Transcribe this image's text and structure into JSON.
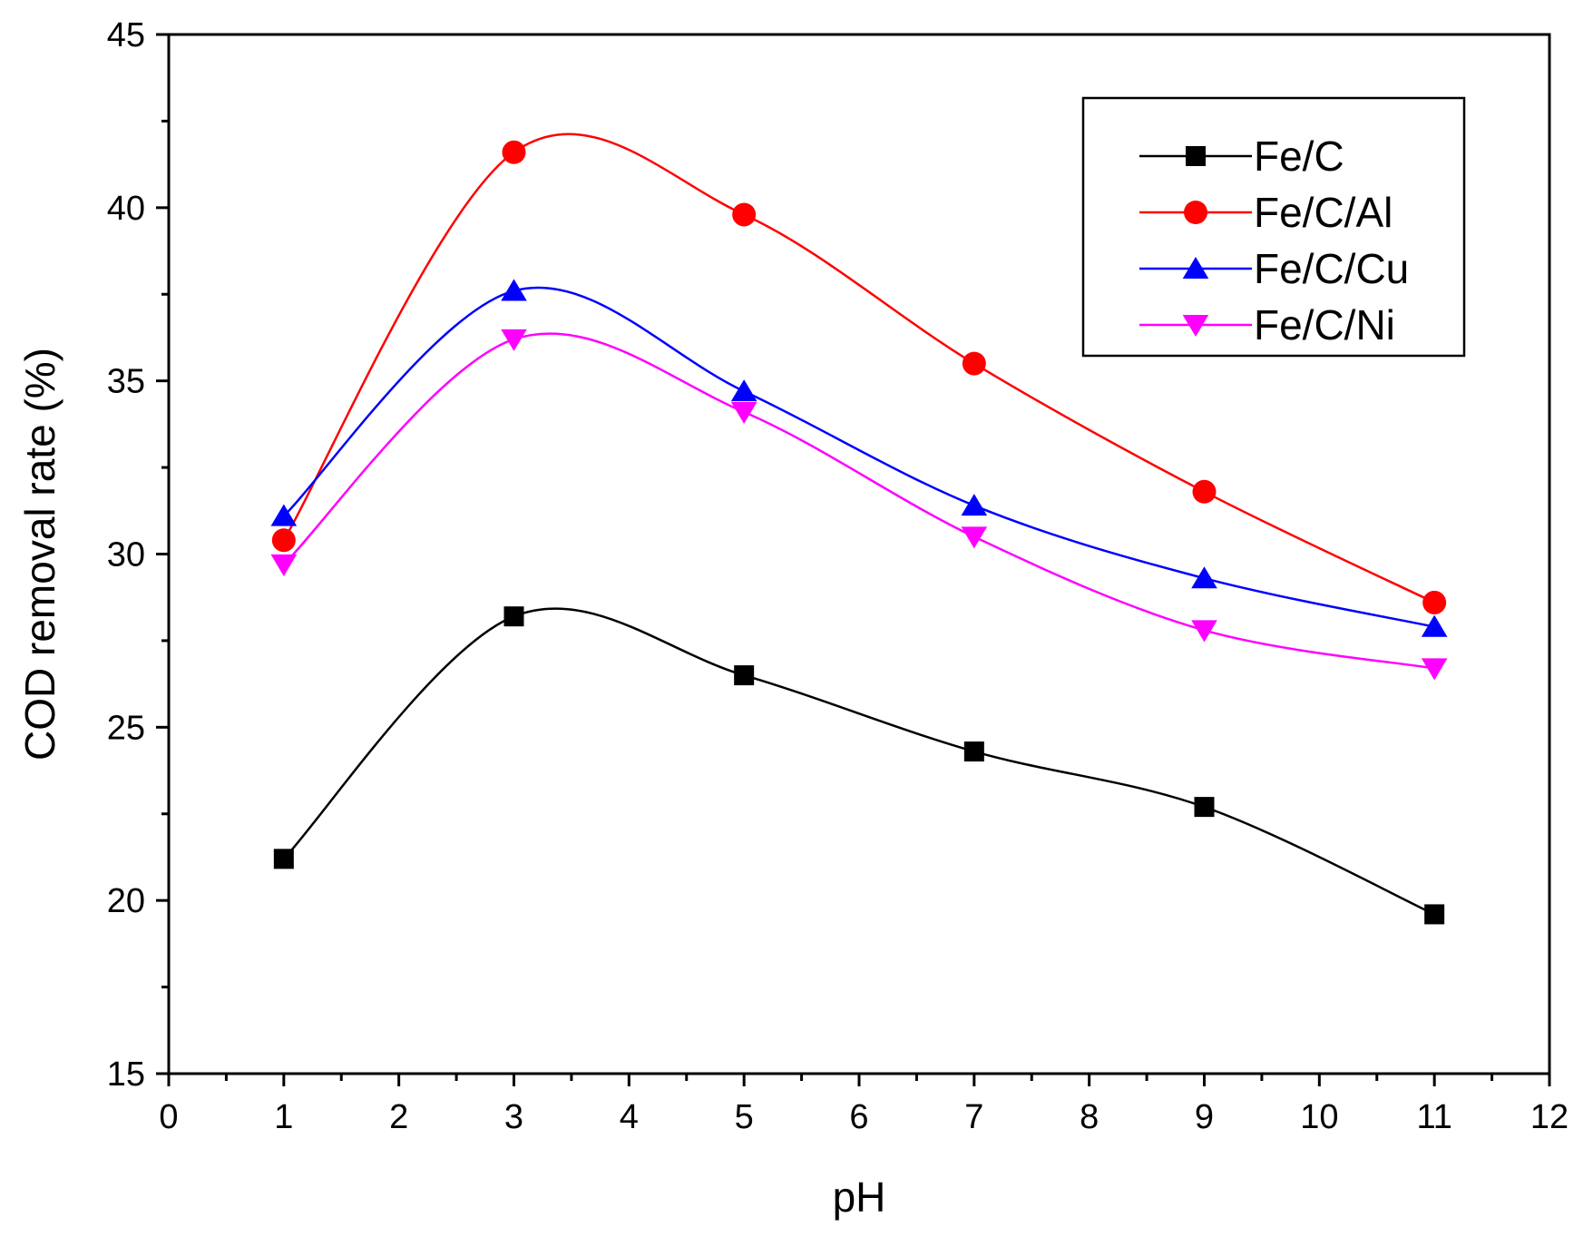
{
  "chart_data": {
    "type": "line",
    "title": "",
    "xlabel": "pH",
    "ylabel": "COD removal rate (%)",
    "xlim": [
      0,
      12
    ],
    "ylim": [
      15,
      45
    ],
    "xticks": [
      0,
      1,
      2,
      3,
      4,
      5,
      6,
      7,
      8,
      9,
      10,
      11,
      12
    ],
    "yticks": [
      15,
      20,
      25,
      30,
      35,
      40,
      45
    ],
    "grid": false,
    "legend_position": "top-right",
    "x": [
      1,
      3,
      5,
      7,
      9,
      11
    ],
    "series": [
      {
        "name": "Fe/C",
        "color": "#000000",
        "marker": "square",
        "values": [
          21.2,
          28.2,
          26.5,
          24.3,
          22.7,
          19.6
        ]
      },
      {
        "name": "Fe/C/Al",
        "color": "#ff0000",
        "marker": "circle",
        "values": [
          30.4,
          41.6,
          39.8,
          35.5,
          31.8,
          28.6
        ]
      },
      {
        "name": "Fe/C/Cu",
        "color": "#0000ff",
        "marker": "triangle-up",
        "values": [
          31.1,
          37.6,
          34.7,
          31.4,
          29.3,
          27.9
        ]
      },
      {
        "name": "Fe/C/Ni",
        "color": "#ff00ff",
        "marker": "triangle-down",
        "values": [
          29.7,
          36.2,
          34.1,
          30.5,
          27.8,
          26.7
        ]
      }
    ]
  }
}
